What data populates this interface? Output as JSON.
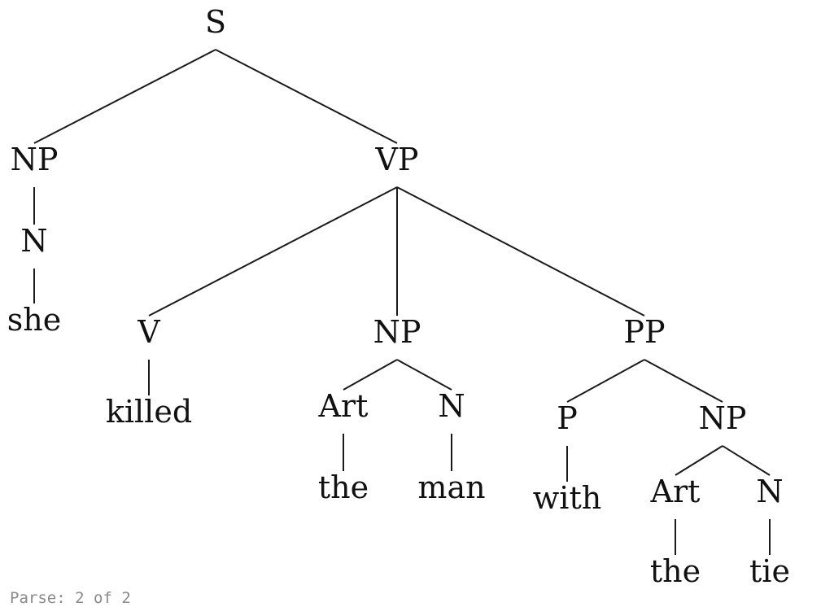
{
  "tree": {
    "label": "S",
    "children": [
      {
        "label": "NP",
        "children": [
          {
            "label": "N",
            "children": [
              {
                "label": "she"
              }
            ]
          }
        ]
      },
      {
        "label": "VP",
        "children": [
          {
            "label": "V",
            "children": [
              {
                "label": "killed"
              }
            ]
          },
          {
            "label": "NP",
            "children": [
              {
                "label": "Art",
                "children": [
                  {
                    "label": "the"
                  }
                ]
              },
              {
                "label": "N",
                "children": [
                  {
                    "label": "man"
                  }
                ]
              }
            ]
          },
          {
            "label": "PP",
            "children": [
              {
                "label": "P",
                "children": [
                  {
                    "label": "with"
                  }
                ]
              },
              {
                "label": "NP",
                "children": [
                  {
                    "label": "Art",
                    "children": [
                      {
                        "label": "the"
                      }
                    ]
                  },
                  {
                    "label": "N",
                    "children": [
                      {
                        "label": "tie"
                      }
                    ]
                  }
                ]
              }
            ]
          }
        ]
      }
    ]
  },
  "caption": {
    "label": "Parse:",
    "current": "2",
    "separator": "of",
    "total": "2"
  }
}
